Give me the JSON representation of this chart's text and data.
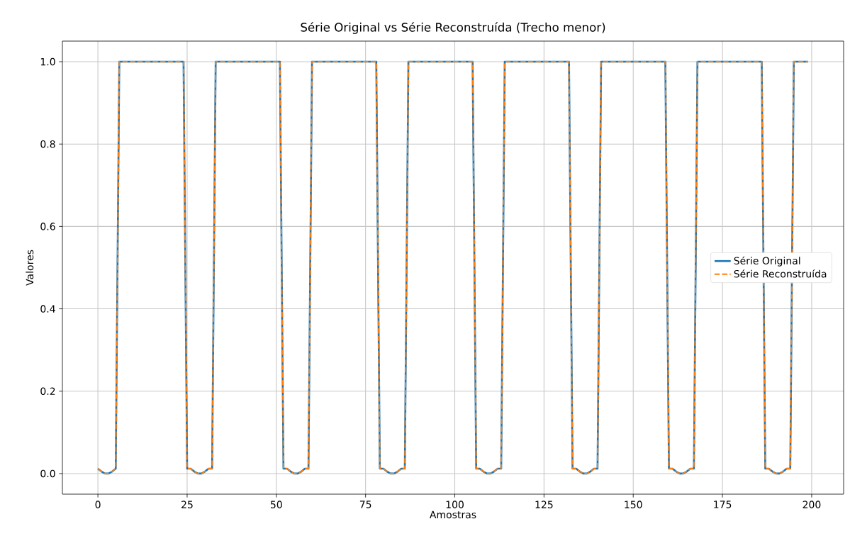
{
  "chart_data": {
    "type": "line",
    "title": "Série Original vs Série Reconstruída (Trecho menor)",
    "xlabel": "Amostras",
    "ylabel": "Valores",
    "x": [
      0,
      1,
      2,
      3,
      4,
      5,
      6,
      7,
      8,
      9,
      10,
      11,
      12,
      13,
      14,
      15,
      16,
      17,
      18,
      19,
      20,
      21,
      22,
      23,
      24,
      25,
      26,
      27,
      28,
      29,
      30,
      31,
      32,
      33,
      34,
      35,
      36,
      37,
      38,
      39,
      40,
      41,
      42,
      43,
      44,
      45,
      46,
      47,
      48,
      49,
      50,
      51,
      52,
      53,
      54,
      55,
      56,
      57,
      58,
      59,
      60,
      61,
      62,
      63,
      64,
      65,
      66,
      67,
      68,
      69,
      70,
      71,
      72,
      73,
      74,
      75,
      76,
      77,
      78,
      79,
      80,
      81,
      82,
      83,
      84,
      85,
      86,
      87,
      88,
      89,
      90,
      91,
      92,
      93,
      94,
      95,
      96,
      97,
      98,
      99,
      100,
      101,
      102,
      103,
      104,
      105,
      106,
      107,
      108,
      109,
      110,
      111,
      112,
      113,
      114,
      115,
      116,
      117,
      118,
      119,
      120,
      121,
      122,
      123,
      124,
      125,
      126,
      127,
      128,
      129,
      130,
      131,
      132,
      133,
      134,
      135,
      136,
      137,
      138,
      139,
      140,
      141,
      142,
      143,
      144,
      145,
      146,
      147,
      148,
      149,
      150,
      151,
      152,
      153,
      154,
      155,
      156,
      157,
      158,
      159,
      160,
      161,
      162,
      163,
      164,
      165,
      166,
      167,
      168,
      169,
      170,
      171,
      172,
      173,
      174,
      175,
      176,
      177,
      178,
      179,
      180,
      181,
      182,
      183,
      184,
      185,
      186,
      187,
      188,
      189,
      190,
      191,
      192,
      193,
      194,
      195,
      196,
      197,
      198,
      199
    ],
    "series": [
      {
        "name": "Série Original",
        "color": "#1f77b4",
        "line_style": "solid",
        "values": [
          0.012,
          0.005,
          0,
          0,
          0.005,
          0.012,
          1,
          1,
          1,
          1,
          1,
          1,
          1,
          1,
          1,
          1,
          1,
          1,
          1,
          1,
          1,
          1,
          1,
          1,
          1,
          0.012,
          0.012,
          0.005,
          0,
          0,
          0.005,
          0.012,
          0.012,
          1,
          1,
          1,
          1,
          1,
          1,
          1,
          1,
          1,
          1,
          1,
          1,
          1,
          1,
          1,
          1,
          1,
          1,
          1,
          0.012,
          0.012,
          0.005,
          0,
          0,
          0.005,
          0.012,
          0.012,
          1,
          1,
          1,
          1,
          1,
          1,
          1,
          1,
          1,
          1,
          1,
          1,
          1,
          1,
          1,
          1,
          1,
          1,
          1,
          0.012,
          0.012,
          0.005,
          0,
          0,
          0.005,
          0.012,
          0.012,
          1,
          1,
          1,
          1,
          1,
          1,
          1,
          1,
          1,
          1,
          1,
          1,
          1,
          1,
          1,
          1,
          1,
          1,
          1,
          0.012,
          0.012,
          0.005,
          0,
          0,
          0.005,
          0.012,
          0.012,
          1,
          1,
          1,
          1,
          1,
          1,
          1,
          1,
          1,
          1,
          1,
          1,
          1,
          1,
          1,
          1,
          1,
          1,
          1,
          0.012,
          0.012,
          0.005,
          0,
          0,
          0.005,
          0.012,
          0.012,
          1,
          1,
          1,
          1,
          1,
          1,
          1,
          1,
          1,
          1,
          1,
          1,
          1,
          1,
          1,
          1,
          1,
          1,
          1,
          0.012,
          0.012,
          0.005,
          0,
          0,
          0.005,
          0.012,
          0.012,
          1,
          1,
          1,
          1,
          1,
          1,
          1,
          1,
          1,
          1,
          1,
          1,
          1,
          1,
          1,
          1,
          1,
          1,
          1,
          0.012,
          0.012,
          0.005,
          0,
          0,
          0.005,
          0.012,
          0.012,
          1,
          1,
          1,
          1,
          1
        ]
      },
      {
        "name": "Série Reconstruída",
        "color": "#ff7f0e",
        "line_style": "dashed",
        "values": [
          0.012,
          0.005,
          0,
          0,
          0.005,
          0.012,
          1,
          1,
          1,
          1,
          1,
          1,
          1,
          1,
          1,
          1,
          1,
          1,
          1,
          1,
          1,
          1,
          1,
          1,
          1,
          0.012,
          0.012,
          0.005,
          0,
          0,
          0.005,
          0.012,
          0.012,
          1,
          1,
          1,
          1,
          1,
          1,
          1,
          1,
          1,
          1,
          1,
          1,
          1,
          1,
          1,
          1,
          1,
          1,
          1,
          0.012,
          0.012,
          0.005,
          0,
          0,
          0.005,
          0.012,
          0.012,
          1,
          1,
          1,
          1,
          1,
          1,
          1,
          1,
          1,
          1,
          1,
          1,
          1,
          1,
          1,
          1,
          1,
          1,
          1,
          0.012,
          0.012,
          0.005,
          0,
          0,
          0.005,
          0.012,
          0.012,
          1,
          1,
          1,
          1,
          1,
          1,
          1,
          1,
          1,
          1,
          1,
          1,
          1,
          1,
          1,
          1,
          1,
          1,
          1,
          0.012,
          0.012,
          0.005,
          0,
          0,
          0.005,
          0.012,
          0.012,
          1,
          1,
          1,
          1,
          1,
          1,
          1,
          1,
          1,
          1,
          1,
          1,
          1,
          1,
          1,
          1,
          1,
          1,
          1,
          0.012,
          0.012,
          0.005,
          0,
          0,
          0.005,
          0.012,
          0.012,
          1,
          1,
          1,
          1,
          1,
          1,
          1,
          1,
          1,
          1,
          1,
          1,
          1,
          1,
          1,
          1,
          1,
          1,
          1,
          0.012,
          0.012,
          0.005,
          0,
          0,
          0.005,
          0.012,
          0.012,
          1,
          1,
          1,
          1,
          1,
          1,
          1,
          1,
          1,
          1,
          1,
          1,
          1,
          1,
          1,
          1,
          1,
          1,
          1,
          0.012,
          0.012,
          0.005,
          0,
          0,
          0.005,
          0.012,
          0.012,
          1,
          1,
          1,
          1,
          1
        ]
      }
    ],
    "xlim": [
      -9.95,
      208.95
    ],
    "ylim": [
      -0.05,
      1.05
    ],
    "xticks": [
      0,
      25,
      50,
      75,
      100,
      125,
      150,
      175,
      200
    ],
    "yticks": [
      {
        "value": 0,
        "label": "0.0"
      },
      {
        "value": 0.2,
        "label": "0.2"
      },
      {
        "value": 0.4,
        "label": "0.4"
      },
      {
        "value": 0.6,
        "label": "0.6"
      },
      {
        "value": 0.8,
        "label": "0.8"
      },
      {
        "value": 1,
        "label": "1.0"
      }
    ],
    "grid": true,
    "legend": "right",
    "marker": "none"
  }
}
